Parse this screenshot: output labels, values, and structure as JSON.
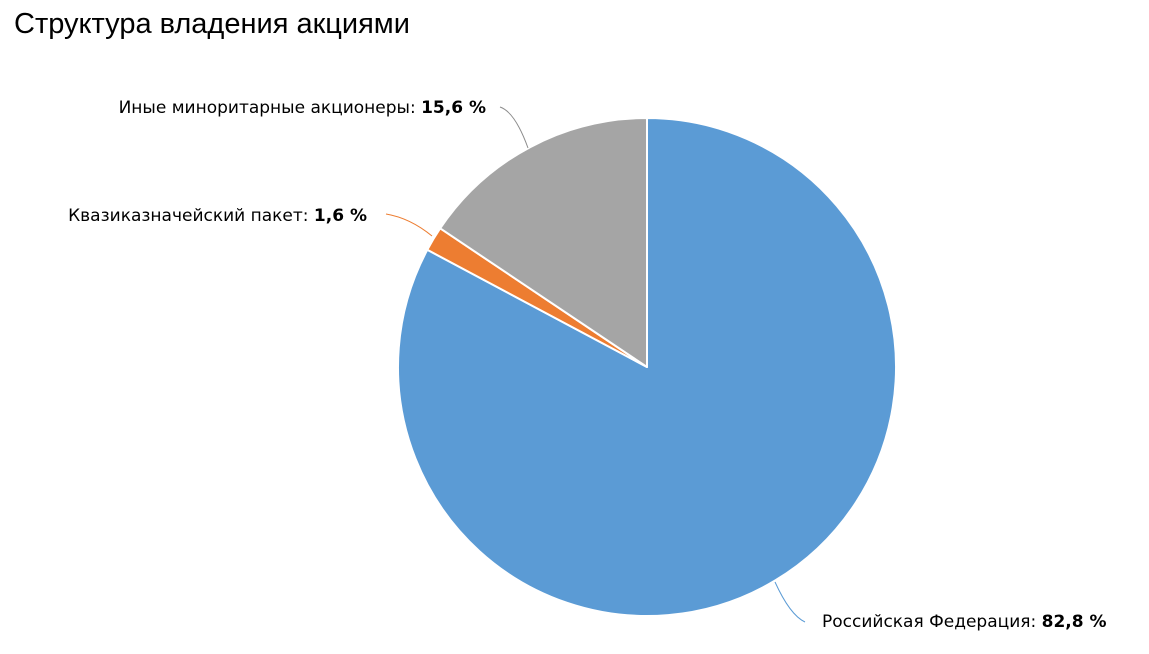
{
  "chart_data": {
    "type": "pie",
    "title": "Структура владения акциями",
    "categories": [
      "Российская Федерация",
      "Квазиказначейский пакет",
      "Иные миноритарные акционеры"
    ],
    "values": [
      82.8,
      1.6,
      15.6
    ],
    "value_labels": [
      "82,8 %",
      "1,6 %",
      "15,6 %"
    ],
    "colors": [
      "#5b9bd5",
      "#ed7d31",
      "#a5a5a5"
    ]
  }
}
